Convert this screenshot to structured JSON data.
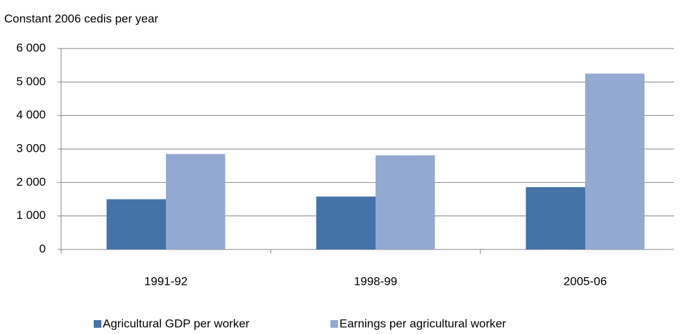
{
  "chart_data": {
    "type": "bar",
    "y_axis_label": "Constant 2006 cedis per year",
    "categories": [
      "1991-92",
      "1998-99",
      "2005-06"
    ],
    "series": [
      {
        "name": "Agricultural GDP per worker",
        "color": "#4572a7",
        "values": [
          1500,
          1580,
          1860
        ]
      },
      {
        "name": "Earnings per agricultural worker",
        "color": "#93a9d1",
        "values": [
          2850,
          2810,
          5250
        ]
      }
    ],
    "ylim": [
      0,
      6000
    ],
    "yticks": [
      0,
      {
        "value": 1000,
        "label": "1 000"
      },
      {
        "value": 2000,
        "label": "2 000"
      },
      {
        "value": 3000,
        "label": "3 000"
      },
      {
        "value": 4000,
        "label": "4 000"
      },
      {
        "value": 5000,
        "label": "5 000"
      },
      {
        "value": 6000,
        "label": "6 000"
      }
    ],
    "grid": true,
    "legend": "bottom"
  }
}
